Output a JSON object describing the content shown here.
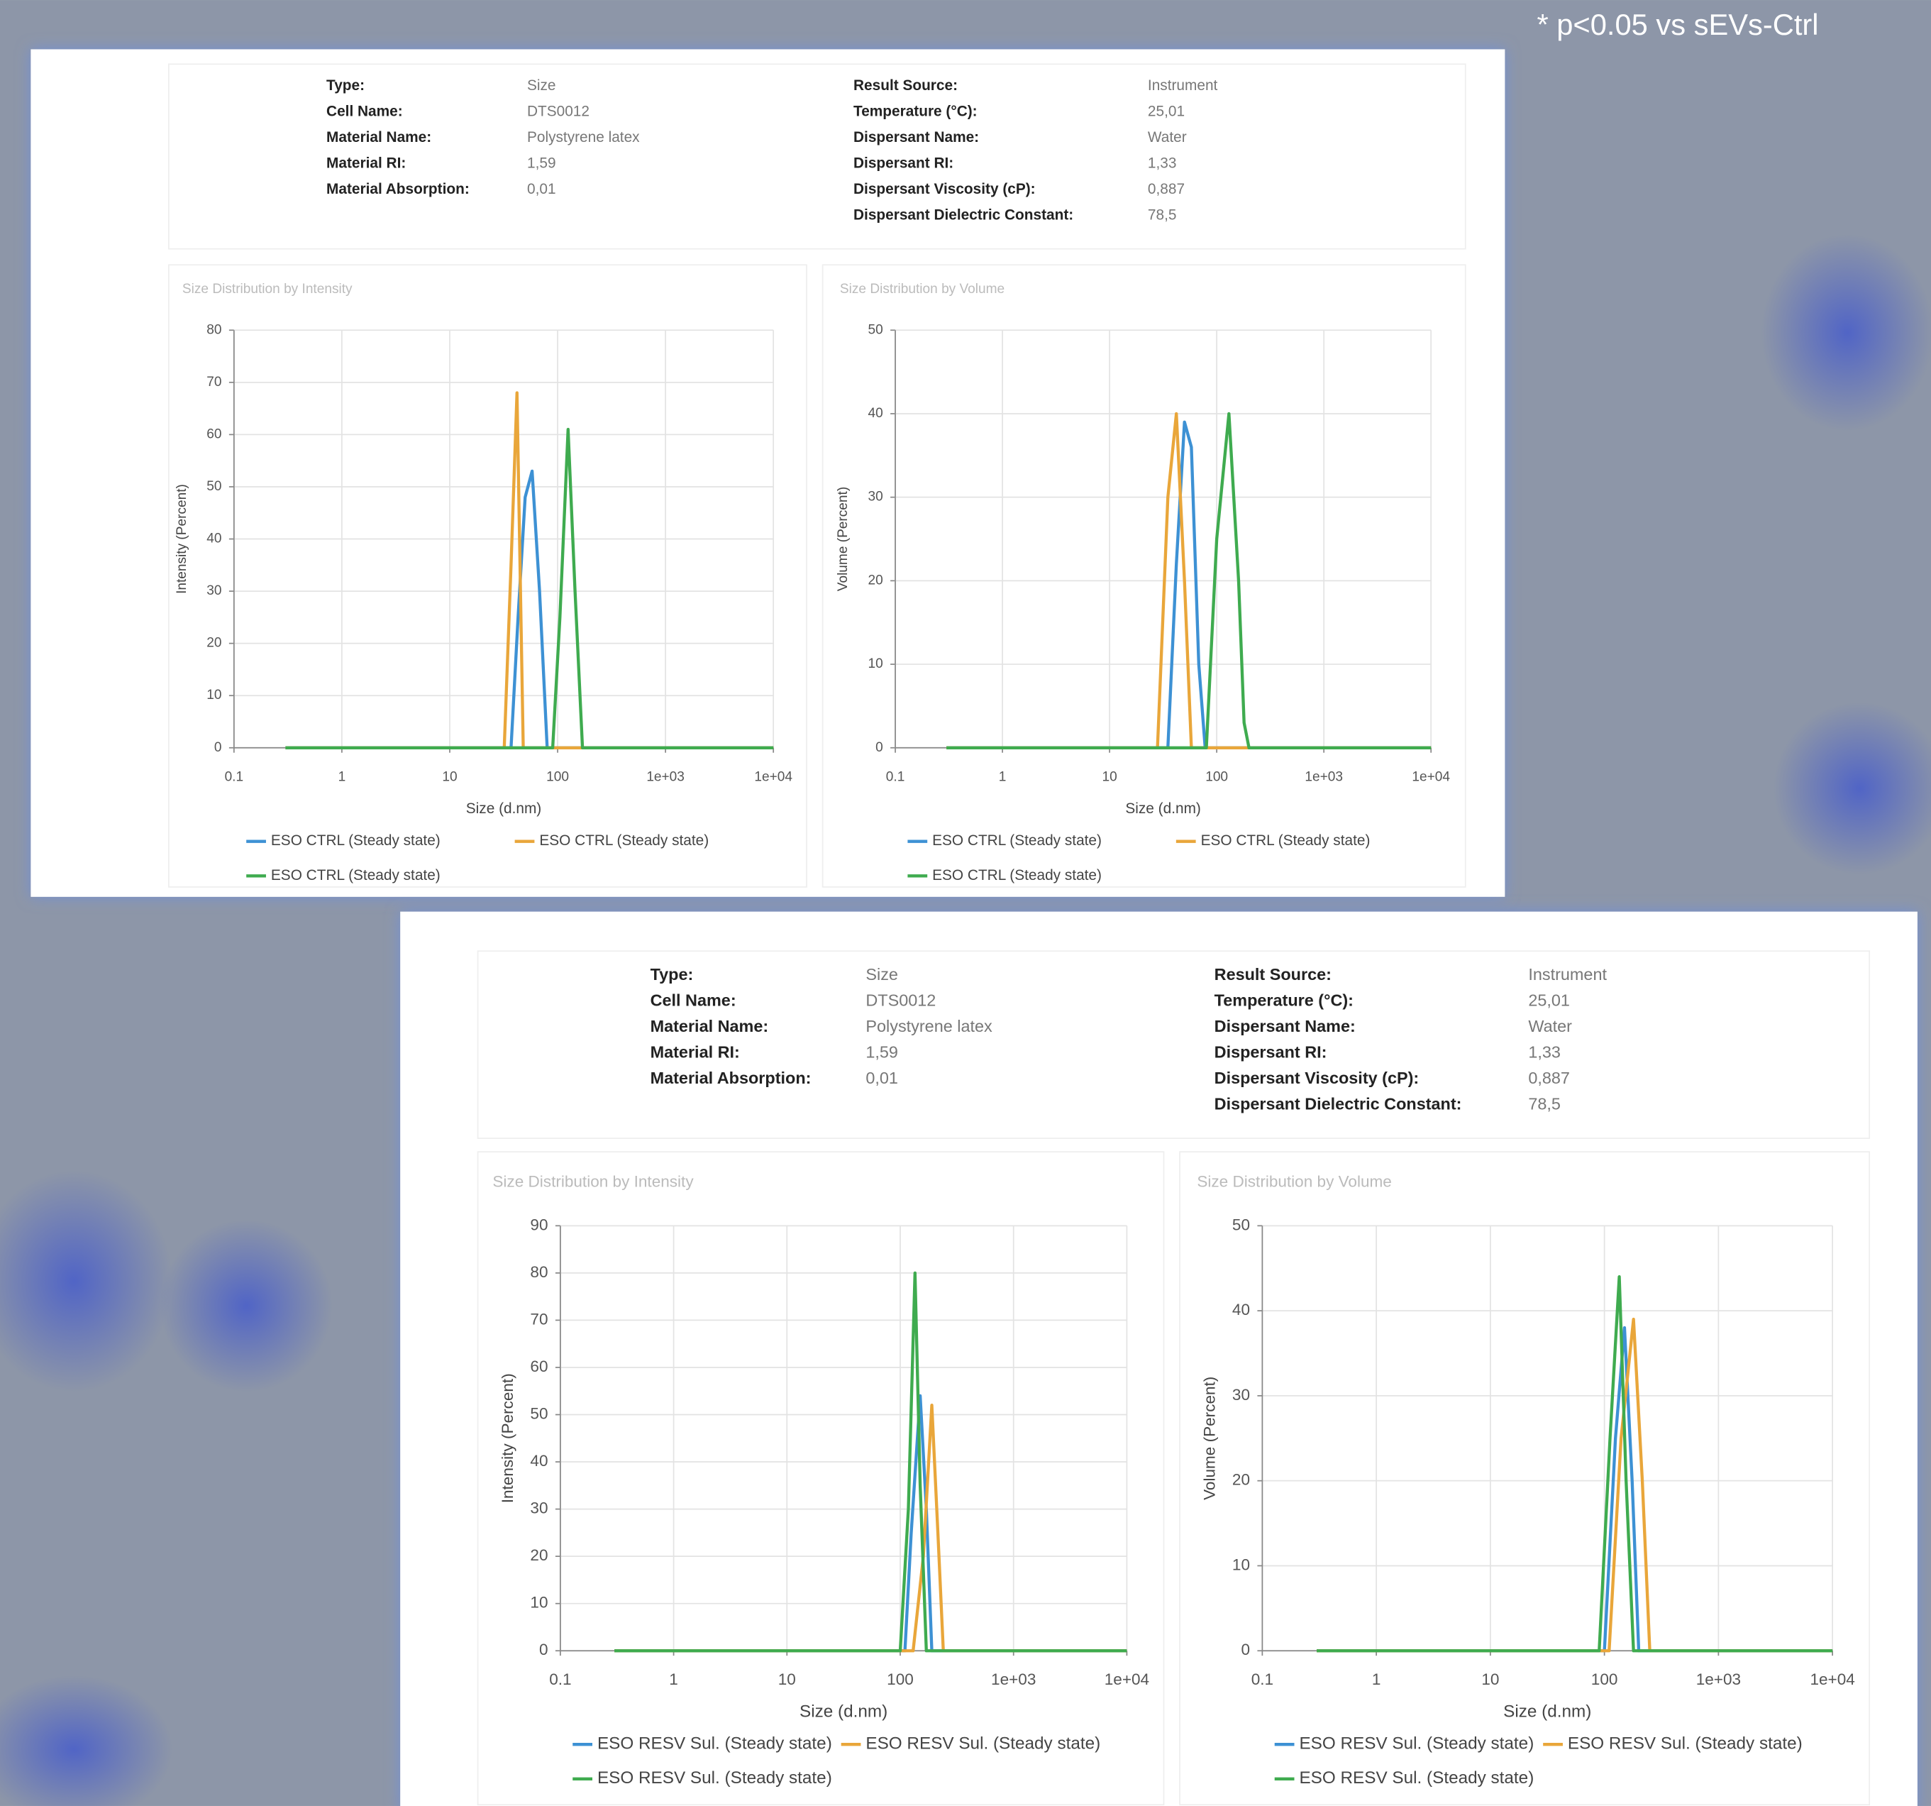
{
  "note": "* p<0.05 vs sEVs-Ctrl",
  "panels": [
    {
      "left": [
        {
          "label": "Type:",
          "value": "Size"
        },
        {
          "label": "Cell Name:",
          "value": "DTS0012"
        },
        {
          "label": "Material Name:",
          "value": "Polystyrene latex"
        },
        {
          "label": "Material RI:",
          "value": "1,59"
        },
        {
          "label": "Material Absorption:",
          "value": "0,01"
        }
      ],
      "right": [
        {
          "label": "Result Source:",
          "value": "Instrument"
        },
        {
          "label": "Temperature (°C):",
          "value": "25,01"
        },
        {
          "label": "Dispersant Name:",
          "value": "Water"
        },
        {
          "label": "Dispersant RI:",
          "value": "1,33"
        },
        {
          "label": "Dispersant Viscosity (cP):",
          "value": "0,887"
        },
        {
          "label": "Dispersant Dielectric Constant:",
          "value": "78,5"
        }
      ]
    },
    {
      "left": [
        {
          "label": "Type:",
          "value": "Size"
        },
        {
          "label": "Cell Name:",
          "value": "DTS0012"
        },
        {
          "label": "Material Name:",
          "value": "Polystyrene latex"
        },
        {
          "label": "Material RI:",
          "value": "1,59"
        },
        {
          "label": "Material Absorption:",
          "value": "0,01"
        }
      ],
      "right": [
        {
          "label": "Result Source:",
          "value": "Instrument"
        },
        {
          "label": "Temperature (°C):",
          "value": "25,01"
        },
        {
          "label": "Dispersant Name:",
          "value": "Water"
        },
        {
          "label": "Dispersant RI:",
          "value": "1,33"
        },
        {
          "label": "Dispersant Viscosity (cP):",
          "value": "0,887"
        },
        {
          "label": "Dispersant Dielectric Constant:",
          "value": "78,5"
        }
      ]
    }
  ],
  "chart_data": [
    {
      "type": "line",
      "title": "Size Distribution by Intensity",
      "x_label": "Size (d.nm)",
      "y_label": "Intensity (Percent)",
      "xscale": "log",
      "grid": true,
      "xlim": [
        0.1,
        10000
      ],
      "xticks": [
        0.1,
        1,
        10,
        100,
        {
          "value": 1000,
          "label": "1e+03"
        },
        {
          "value": 10000,
          "label": "1e+04"
        }
      ],
      "ylim": [
        0,
        80
      ],
      "yticks": [
        0,
        10,
        20,
        30,
        40,
        50,
        60,
        70,
        80
      ],
      "series": [
        {
          "name": "ESO CTRL (Steady state)",
          "color": "#3d91d4",
          "x": [
            0.3,
            37,
            43,
            50,
            58,
            68,
            80,
            10000
          ],
          "values": [
            0,
            0,
            25,
            48,
            53,
            30,
            0,
            0
          ]
        },
        {
          "name": "ESO CTRL (Steady state)",
          "color": "#e9a63a",
          "x": [
            0.3,
            32,
            37,
            42,
            48,
            10000
          ],
          "values": [
            0,
            0,
            35,
            68,
            0,
            0
          ]
        },
        {
          "name": "ESO CTRL (Steady state)",
          "color": "#3fab4f",
          "x": [
            0.3,
            90,
            105,
            125,
            145,
            170,
            10000
          ],
          "values": [
            0,
            0,
            25,
            61,
            30,
            0,
            0
          ]
        }
      ]
    },
    {
      "type": "line",
      "title": "Size Distribution by Volume",
      "x_label": "Size (d.nm)",
      "y_label": "Volume (Percent)",
      "xscale": "log",
      "grid": true,
      "xlim": [
        0.1,
        10000
      ],
      "xticks": [
        0.1,
        1,
        10,
        100,
        {
          "value": 1000,
          "label": "1e+03"
        },
        {
          "value": 10000,
          "label": "1e+04"
        }
      ],
      "ylim": [
        0,
        50
      ],
      "yticks": [
        0,
        10,
        20,
        30,
        40,
        50
      ],
      "series": [
        {
          "name": "ESO CTRL (Steady state)",
          "color": "#3d91d4",
          "x": [
            0.3,
            35,
            42,
            50,
            58,
            68,
            78,
            10000
          ],
          "values": [
            0,
            0,
            22,
            39,
            36,
            10,
            0,
            0
          ]
        },
        {
          "name": "ESO CTRL (Steady state)",
          "color": "#e9a63a",
          "x": [
            0.3,
            28,
            35,
            42,
            50,
            58,
            10000
          ],
          "values": [
            0,
            0,
            30,
            40,
            20,
            0,
            0
          ]
        },
        {
          "name": "ESO CTRL (Steady state)",
          "color": "#3fab4f",
          "x": [
            0.3,
            80,
            100,
            130,
            160,
            180,
            200,
            10000
          ],
          "values": [
            0,
            0,
            25,
            40,
            20,
            3,
            0,
            0
          ]
        }
      ]
    },
    {
      "type": "line",
      "title": "Size Distribution by Intensity",
      "x_label": "Size (d.nm)",
      "y_label": "Intensity (Percent)",
      "xscale": "log",
      "grid": true,
      "xlim": [
        0.1,
        10000
      ],
      "xticks": [
        0.1,
        1,
        10,
        100,
        {
          "value": 1000,
          "label": "1e+03"
        },
        {
          "value": 10000,
          "label": "1e+04"
        }
      ],
      "ylim": [
        0,
        90
      ],
      "yticks": [
        0,
        10,
        20,
        30,
        40,
        50,
        60,
        70,
        80,
        90
      ],
      "series": [
        {
          "name": "ESO RESV Sul. (Steady state)",
          "color": "#3d91d4",
          "x": [
            0.3,
            110,
            125,
            150,
            170,
            190,
            10000
          ],
          "values": [
            0,
            0,
            25,
            54,
            30,
            0,
            0
          ]
        },
        {
          "name": "ESO RESV Sul. (Steady state)",
          "color": "#e9a63a",
          "x": [
            0.3,
            130,
            160,
            190,
            215,
            240,
            10000
          ],
          "values": [
            0,
            0,
            20,
            52,
            25,
            0,
            0
          ]
        },
        {
          "name": "ESO RESV Sul. (Steady state)",
          "color": "#3fab4f",
          "x": [
            0.3,
            100,
            118,
            135,
            150,
            170,
            10000
          ],
          "values": [
            0,
            0,
            30,
            80,
            35,
            0,
            0
          ]
        }
      ]
    },
    {
      "type": "line",
      "title": "Size Distribution by Volume",
      "x_label": "Size (d.nm)",
      "y_label": "Volume (Percent)",
      "xscale": "log",
      "grid": true,
      "xlim": [
        0.1,
        10000
      ],
      "xticks": [
        0.1,
        1,
        10,
        100,
        {
          "value": 1000,
          "label": "1e+03"
        },
        {
          "value": 10000,
          "label": "1e+04"
        }
      ],
      "ylim": [
        0,
        50
      ],
      "yticks": [
        0,
        10,
        20,
        30,
        40,
        50
      ],
      "series": [
        {
          "name": "ESO RESV Sul. (Steady state)",
          "color": "#3d91d4",
          "x": [
            0.3,
            100,
            125,
            150,
            175,
            200,
            10000
          ],
          "values": [
            0,
            0,
            25,
            38,
            20,
            0,
            0
          ]
        },
        {
          "name": "ESO RESV Sul. (Steady state)",
          "color": "#e9a63a",
          "x": [
            0.3,
            110,
            140,
            180,
            215,
            250,
            10000
          ],
          "values": [
            0,
            0,
            25,
            39,
            20,
            0,
            0
          ]
        },
        {
          "name": "ESO RESV Sul. (Steady state)",
          "color": "#3fab4f",
          "x": [
            0.3,
            90,
            112,
            135,
            155,
            180,
            10000
          ],
          "values": [
            0,
            0,
            25,
            44,
            20,
            0,
            0
          ]
        }
      ]
    }
  ]
}
